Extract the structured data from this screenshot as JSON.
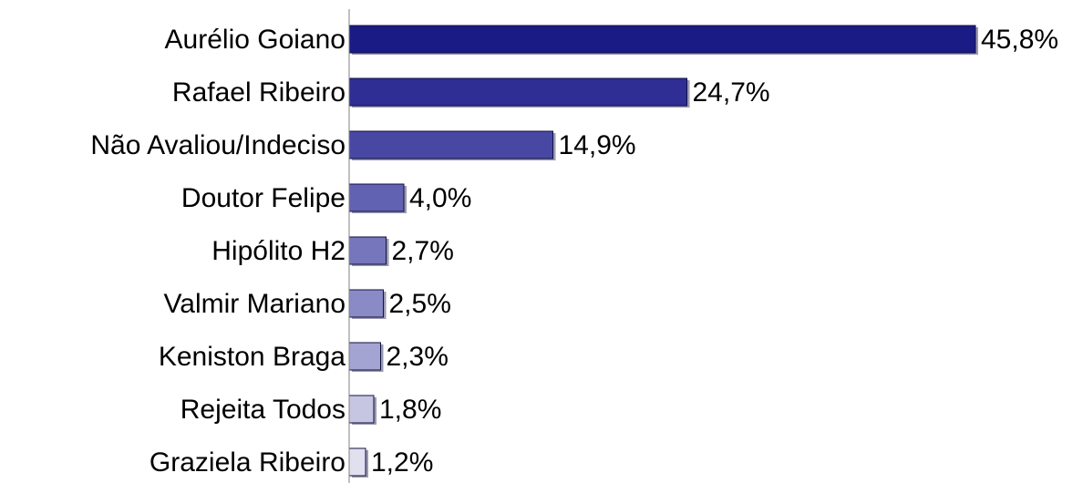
{
  "chart_data": {
    "type": "bar",
    "orientation": "horizontal",
    "categories": [
      "Aurélio Goiano",
      "Rafael Ribeiro",
      "Não Avaliou/Indeciso",
      "Doutor Felipe",
      "Hipólito H2",
      "Valmir Mariano",
      "Keniston Braga",
      "Rejeita Todos",
      "Graziela Ribeiro"
    ],
    "values": [
      45.8,
      24.7,
      14.9,
      4.0,
      2.7,
      2.5,
      2.3,
      1.8,
      1.2
    ],
    "value_labels": [
      "45,8%",
      "24,7%",
      "14,9%",
      "4,0%",
      "2,7%",
      "2,5%",
      "2,3%",
      "1,8%",
      "1,2%"
    ],
    "colors": [
      "#1b1b86",
      "#2e2e94",
      "#4848a4",
      "#6262b2",
      "#7676bc",
      "#8a8ac6",
      "#a4a4d2",
      "#c6c6e2",
      "#e0e0ef"
    ],
    "xlim": [
      0,
      50
    ]
  }
}
